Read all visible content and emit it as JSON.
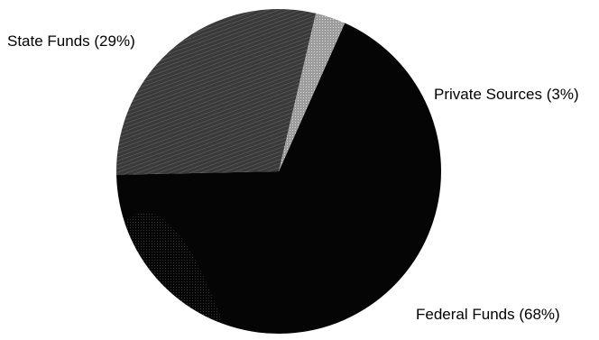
{
  "chart_data": {
    "type": "pie",
    "slices": [
      {
        "label": "Federal Funds (68%)",
        "name": "Federal Funds",
        "value": 68,
        "color": "#050505"
      },
      {
        "label": "State Funds (29%)",
        "name": "State Funds",
        "value": 29,
        "color": "#3a3a3a"
      },
      {
        "label": "Private Sources (3%)",
        "name": "Private Sources",
        "value": 3,
        "color": "#9c9c9c"
      }
    ],
    "legend": "none",
    "data_labels": "outside"
  }
}
